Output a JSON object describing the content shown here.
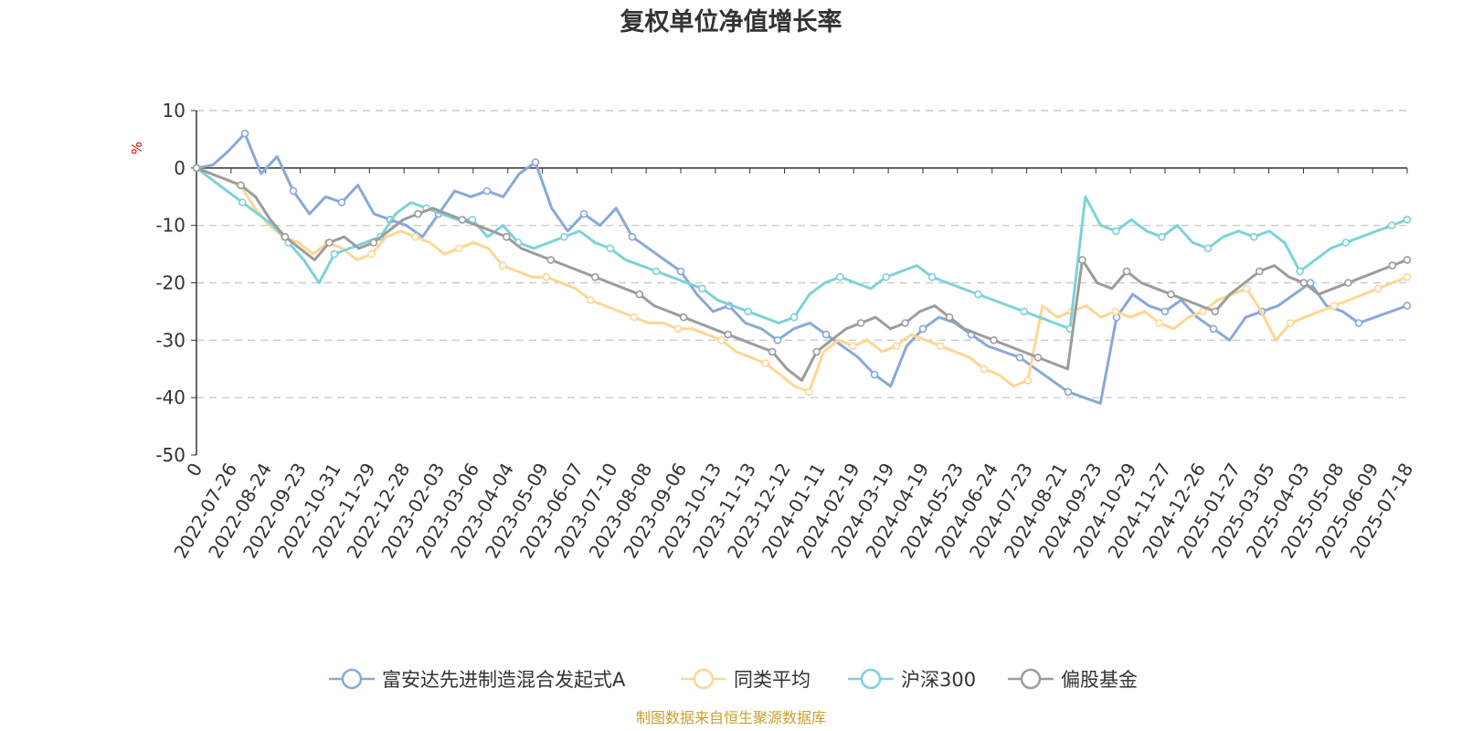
{
  "chart_data": {
    "type": "line",
    "title": "复权单位净值增长率",
    "ylabel": "%",
    "ylim": [
      -50,
      10
    ],
    "yticks": [
      10,
      0,
      -10,
      -20,
      -30,
      -40,
      -50
    ],
    "x_tick_labels": [
      "0",
      "2022-07-26",
      "2022-08-24",
      "2022-09-23",
      "2022-10-31",
      "2022-11-29",
      "2022-12-28",
      "2023-02-03",
      "2023-03-06",
      "2023-04-04",
      "2023-05-09",
      "2023-06-07",
      "2023-07-10",
      "2023-08-08",
      "2023-09-06",
      "2023-10-13",
      "2023-11-13",
      "2023-12-12",
      "2024-01-11",
      "2024-02-19",
      "2024-03-19",
      "2024-04-19",
      "2024-05-23",
      "2024-06-24",
      "2024-07-23",
      "2024-08-21",
      "2024-09-23",
      "2024-10-29",
      "2024-11-27",
      "2024-12-26",
      "2025-01-27",
      "2025-03-05",
      "2025-04-03",
      "2025-05-08",
      "2025-06-09",
      "2025-07-18"
    ],
    "grid": "horizontal dashed",
    "legend_position": "bottom",
    "series": [
      {
        "name": "富安达先进制造混合发起式A",
        "color": "#8aa8d8",
        "values": [
          0,
          0.5,
          3,
          6,
          -1,
          2,
          -4,
          -8,
          -5,
          -6,
          -3,
          -8,
          -9,
          -10,
          -12,
          -8,
          -4,
          -5,
          -4,
          -5,
          -1,
          1,
          -7,
          -11,
          -8,
          -10,
          -7,
          -12,
          -14,
          -16,
          -18,
          -22,
          -25,
          -24,
          -27,
          -28,
          -30,
          -28,
          -27,
          -29,
          -31,
          -33,
          -36,
          -38,
          -31,
          -28,
          -26,
          -27,
          -29,
          -31,
          -32,
          -33,
          -35,
          -37,
          -39,
          -40,
          -41,
          -26,
          -22,
          -24,
          -25,
          -23,
          -26,
          -28,
          -30,
          -26,
          -25,
          -24,
          -22,
          -20,
          -24,
          -25,
          -27,
          -26,
          -25,
          -24
        ]
      },
      {
        "name": "同类平均",
        "color": "#ffd694",
        "values": [
          0,
          -1,
          -2,
          -3,
          -7,
          -10,
          -12,
          -13,
          -15,
          -13,
          -14,
          -16,
          -15,
          -12,
          -11,
          -12,
          -13,
          -15,
          -14,
          -13,
          -14,
          -17,
          -18,
          -19,
          -19,
          -20,
          -21,
          -23,
          -24,
          -25,
          -26,
          -27,
          -27,
          -28,
          -28,
          -29,
          -30,
          -32,
          -33,
          -34,
          -36,
          -38,
          -39,
          -32,
          -30,
          -31,
          -30,
          -32,
          -31,
          -29,
          -30,
          -31,
          -32,
          -33,
          -35,
          -36,
          -38,
          -37,
          -24,
          -26,
          -25,
          -24,
          -26,
          -25,
          -26,
          -25,
          -27,
          -28,
          -26,
          -25,
          -23,
          -22,
          -21,
          -25,
          -30,
          -27,
          -26,
          -25,
          -24,
          -23,
          -22,
          -21,
          -20,
          -19
        ]
      },
      {
        "name": "沪深300",
        "color": "#7dd2d8",
        "values": [
          0,
          -2,
          -4,
          -6,
          -8,
          -10,
          -13,
          -16,
          -20,
          -15,
          -14,
          -13,
          -12,
          -8,
          -6,
          -7,
          -8,
          -9,
          -9,
          -12,
          -10,
          -13,
          -14,
          -13,
          -12,
          -11,
          -13,
          -14,
          -16,
          -17,
          -18,
          -19,
          -20,
          -21,
          -23,
          -24,
          -25,
          -26,
          -27,
          -26,
          -22,
          -20,
          -19,
          -20,
          -21,
          -19,
          -18,
          -17,
          -19,
          -20,
          -21,
          -22,
          -23,
          -24,
          -25,
          -26,
          -27,
          -28,
          -5,
          -10,
          -11,
          -9,
          -11,
          -12,
          -10,
          -13,
          -14,
          -12,
          -11,
          -12,
          -11,
          -13,
          -18,
          -16,
          -14,
          -13,
          -12,
          -11,
          -10,
          -9
        ]
      },
      {
        "name": "偏股基金",
        "color": "#9c9c9c",
        "values": [
          0,
          -1,
          -2,
          -3,
          -5,
          -9,
          -12,
          -14,
          -16,
          -13,
          -12,
          -14,
          -13,
          -11,
          -9,
          -8,
          -7,
          -8,
          -9,
          -10,
          -11,
          -12,
          -14,
          -15,
          -16,
          -17,
          -18,
          -19,
          -20,
          -21,
          -22,
          -24,
          -25,
          -26,
          -27,
          -28,
          -29,
          -30,
          -31,
          -32,
          -35,
          -37,
          -32,
          -30,
          -28,
          -27,
          -26,
          -28,
          -27,
          -25,
          -24,
          -26,
          -28,
          -29,
          -30,
          -31,
          -32,
          -33,
          -34,
          -35,
          -16,
          -20,
          -21,
          -18,
          -20,
          -21,
          -22,
          -23,
          -24,
          -25,
          -22,
          -20,
          -18,
          -17,
          -19,
          -20,
          -22,
          -21,
          -20,
          -19,
          -18,
          -17,
          -16
        ]
      }
    ]
  },
  "source_note": "制图数据来自恒生聚源数据库"
}
